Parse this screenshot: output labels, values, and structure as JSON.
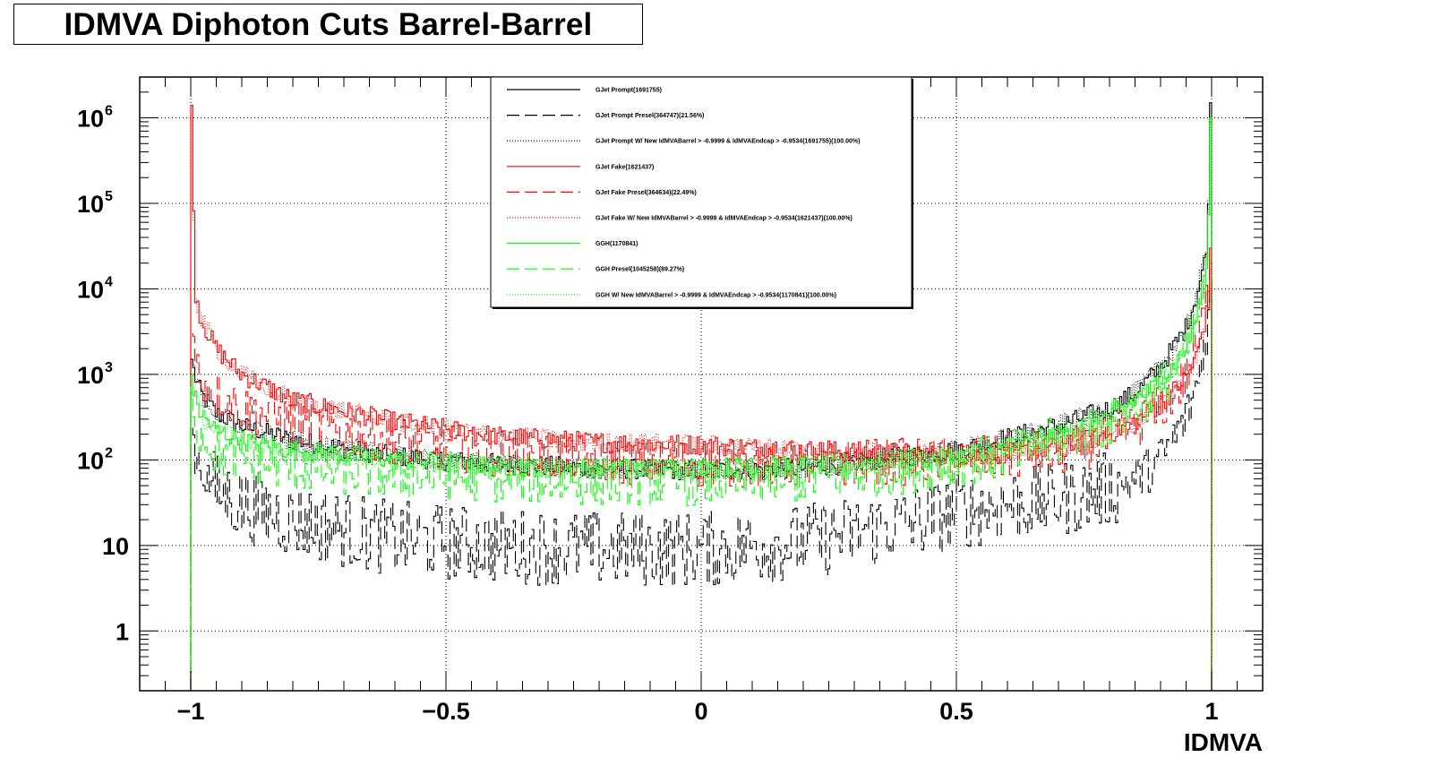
{
  "chart_data": {
    "type": "line",
    "title": "IDMVA Diphoton Cuts Barrel-Barrel",
    "xlabel": "IDMVA",
    "ylabel": "",
    "xlim": [
      -1.1,
      1.1
    ],
    "ylim": [
      0.2,
      3000000
    ],
    "yscale": "log",
    "grid": true,
    "legend_position": "top-center",
    "x_ticks": [
      {
        "value": -1,
        "label": "−1"
      },
      {
        "value": -0.5,
        "label": "−0.5"
      },
      {
        "value": 0,
        "label": "0"
      },
      {
        "value": 0.5,
        "label": "0.5"
      },
      {
        "value": 1,
        "label": "1"
      }
    ],
    "y_ticks": [
      {
        "value": 1,
        "base": "1",
        "exp": ""
      },
      {
        "value": 10,
        "base": "10",
        "exp": ""
      },
      {
        "value": 100,
        "base": "10",
        "exp": "2"
      },
      {
        "value": 1000,
        "base": "10",
        "exp": "3"
      },
      {
        "value": 10000,
        "base": "10",
        "exp": "4"
      },
      {
        "value": 100000,
        "base": "10",
        "exp": "5"
      },
      {
        "value": 1000000,
        "base": "10",
        "exp": "6"
      }
    ],
    "series": [
      {
        "name": "GJet Prompt(1691755)",
        "color": "#000000",
        "dash": "solid",
        "x": [
          -1.0,
          -0.99,
          -0.98,
          -0.95,
          -0.9,
          -0.8,
          -0.6,
          -0.4,
          -0.2,
          0.0,
          0.2,
          0.4,
          0.5,
          0.6,
          0.7,
          0.8,
          0.85,
          0.9,
          0.95,
          0.97,
          0.99,
          1.0
        ],
        "values": [
          1500,
          900,
          600,
          350,
          250,
          170,
          110,
          90,
          80,
          75,
          80,
          110,
          130,
          180,
          250,
          400,
          600,
          1200,
          3500,
          8000,
          25000,
          1500000
        ]
      },
      {
        "name": "GJet Prompt Presel(364747)(21.56%)",
        "color": "#000000",
        "dash": "long-dash",
        "x": [
          -1.0,
          -0.99,
          -0.98,
          -0.95,
          -0.9,
          -0.8,
          -0.6,
          -0.4,
          -0.2,
          0.0,
          0.2,
          0.4,
          0.5,
          0.6,
          0.7,
          0.8,
          0.85,
          0.9,
          0.95,
          0.97,
          0.99,
          1.0
        ],
        "values": [
          250,
          120,
          80,
          45,
          30,
          20,
          12,
          10,
          9,
          9,
          11,
          18,
          25,
          30,
          35,
          45,
          60,
          100,
          300,
          700,
          3000,
          10000
        ]
      },
      {
        "name": "GJet Prompt W/ New IdMVABarrel > -0.9999 & IdMVAEndcap > -0.9534(1691755)(100.00%)",
        "color": "#000000",
        "dash": "dotted",
        "x": [
          -1.0,
          -0.99,
          -0.98,
          -0.95,
          -0.9,
          -0.8,
          -0.6,
          -0.4,
          -0.2,
          0.0,
          0.2,
          0.4,
          0.5,
          0.6,
          0.7,
          0.8,
          0.85,
          0.9,
          0.95,
          0.97,
          0.99,
          1.0
        ],
        "values": [
          1500,
          900,
          600,
          350,
          250,
          170,
          110,
          90,
          80,
          75,
          80,
          110,
          130,
          180,
          250,
          400,
          600,
          1200,
          3500,
          8000,
          25000,
          1500000
        ]
      },
      {
        "name": "GJet Fake(1621437)",
        "color": "#ff0000",
        "dash": "solid",
        "x": [
          -1.0,
          -0.99,
          -0.98,
          -0.95,
          -0.9,
          -0.8,
          -0.6,
          -0.4,
          -0.2,
          0.0,
          0.2,
          0.4,
          0.5,
          0.6,
          0.7,
          0.8,
          0.85,
          0.9,
          0.95,
          0.97,
          0.99,
          1.0
        ],
        "values": [
          1400000,
          9000,
          4500,
          2000,
          1000,
          500,
          280,
          190,
          160,
          150,
          130,
          120,
          110,
          120,
          140,
          200,
          280,
          450,
          900,
          1600,
          5000,
          30000
        ]
      },
      {
        "name": "GJet Fake Presel(364634)(22.49%)",
        "color": "#ff0000",
        "dash": "long-dash",
        "x": [
          -1.0,
          -0.99,
          -0.98,
          -0.95,
          -0.9,
          -0.8,
          -0.6,
          -0.4,
          -0.2,
          0.0,
          0.2,
          0.4,
          0.5,
          0.6,
          0.7,
          0.8,
          0.85,
          0.9,
          0.95,
          0.97,
          0.99,
          1.0
        ],
        "values": [
          3000,
          1500,
          900,
          600,
          400,
          280,
          170,
          120,
          100,
          90,
          90,
          95,
          100,
          110,
          120,
          170,
          250,
          400,
          900,
          1800,
          7000,
          20000
        ]
      },
      {
        "name": "GJet Fake W/ New IdMVABarrel > -0.9999 & IdMVAEndcap > -0.9534(1621437)(100.00%)",
        "color": "#ff0000",
        "dash": "dotted",
        "x": [
          -1.0,
          -0.99,
          -0.98,
          -0.95,
          -0.9,
          -0.8,
          -0.6,
          -0.4,
          -0.2,
          0.0,
          0.2,
          0.4,
          0.5,
          0.6,
          0.7,
          0.8,
          0.85,
          0.9,
          0.95,
          0.97,
          0.99,
          1.0
        ],
        "values": [
          1400000,
          9000,
          4500,
          2000,
          1000,
          500,
          280,
          190,
          160,
          150,
          130,
          120,
          110,
          120,
          140,
          200,
          280,
          450,
          900,
          1600,
          5000,
          30000
        ]
      },
      {
        "name": "GGH(1170841)",
        "color": "#00ff00",
        "dash": "solid",
        "x": [
          -1.0,
          -0.99,
          -0.98,
          -0.95,
          -0.9,
          -0.8,
          -0.6,
          -0.4,
          -0.2,
          0.0,
          0.2,
          0.4,
          0.5,
          0.6,
          0.7,
          0.8,
          0.85,
          0.9,
          0.95,
          0.97,
          0.99,
          1.0
        ],
        "values": [
          1000,
          500,
          350,
          220,
          170,
          130,
          100,
          85,
          80,
          80,
          85,
          100,
          110,
          140,
          200,
          320,
          500,
          800,
          2000,
          4500,
          15000,
          1000000
        ]
      },
      {
        "name": "GGH Presel(1045258)(89.27%)",
        "color": "#00ff00",
        "dash": "long-dash",
        "x": [
          -1.0,
          -0.99,
          -0.98,
          -0.95,
          -0.9,
          -0.8,
          -0.6,
          -0.4,
          -0.2,
          0.0,
          0.2,
          0.4,
          0.5,
          0.6,
          0.7,
          0.8,
          0.85,
          0.9,
          0.95,
          0.97,
          0.99,
          1.0
        ],
        "values": [
          600,
          300,
          200,
          120,
          100,
          80,
          65,
          60,
          55,
          55,
          60,
          75,
          90,
          110,
          170,
          270,
          420,
          700,
          1700,
          4000,
          13000,
          900000
        ]
      },
      {
        "name": "GGH W/ New IdMVABarrel > -0.9999 & IdMVAEndcap > -0.9534(1170841)(100.00%)",
        "color": "#00ff00",
        "dash": "dotted",
        "x": [
          -1.0,
          -0.99,
          -0.98,
          -0.95,
          -0.9,
          -0.8,
          -0.6,
          -0.4,
          -0.2,
          0.0,
          0.2,
          0.4,
          0.5,
          0.6,
          0.7,
          0.8,
          0.85,
          0.9,
          0.95,
          0.97,
          0.99,
          1.0
        ],
        "values": [
          1000,
          500,
          350,
          220,
          170,
          130,
          100,
          85,
          80,
          80,
          85,
          100,
          110,
          140,
          200,
          320,
          500,
          800,
          2000,
          4500,
          15000,
          1000000
        ]
      }
    ]
  }
}
